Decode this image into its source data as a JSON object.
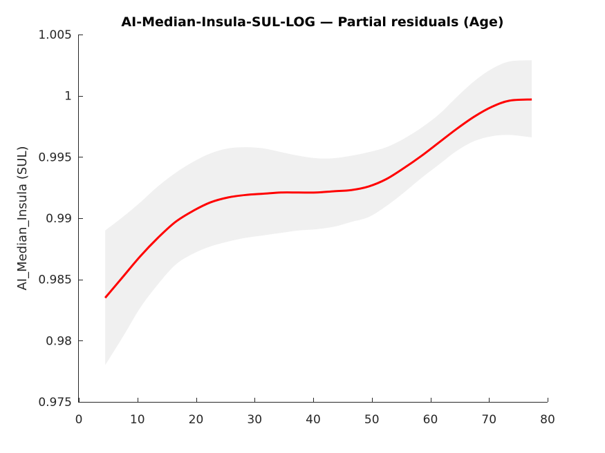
{
  "chart_data": {
    "type": "line",
    "title": "AI-Median-Insula-SUL-LOG — Partial residuals (Age)",
    "xlabel": "",
    "ylabel": "AI_Median_Insula (SUL)",
    "xlim": [
      0,
      80
    ],
    "ylim": [
      0.975,
      1.005
    ],
    "xticks": [
      0,
      10,
      20,
      30,
      40,
      50,
      60,
      70,
      80
    ],
    "xtick_labels": [
      "0",
      "10",
      "20",
      "30",
      "40",
      "50",
      "60",
      "70",
      "80"
    ],
    "yticks": [
      0.975,
      0.98,
      0.985,
      0.99,
      0.995,
      1.0,
      1.005
    ],
    "ytick_labels": [
      "0.975",
      "0.98",
      "0.985",
      "0.99",
      "0.995",
      "1",
      "1.005"
    ],
    "grid": false,
    "series": [
      {
        "type": "line",
        "color": "#ff0000",
        "x": [
          4.5,
          7.5,
          10.5,
          13.5,
          16.5,
          19.5,
          22.5,
          25.5,
          28.5,
          31.5,
          34.5,
          37.5,
          40.5,
          43.5,
          46.5,
          49.5,
          52.5,
          55.5,
          58.5,
          61.5,
          64.5,
          67.5,
          70.5,
          73.5,
          77.3
        ],
        "y": [
          0.9835,
          0.9852,
          0.9869,
          0.9884,
          0.9897,
          0.9906,
          0.9913,
          0.9917,
          0.9919,
          0.992,
          0.9921,
          0.9921,
          0.9921,
          0.9922,
          0.9923,
          0.9926,
          0.9932,
          0.9941,
          0.9951,
          0.9962,
          0.9973,
          0.9983,
          0.9991,
          0.9996,
          0.9997
        ]
      },
      {
        "type": "band",
        "color": "#f0f0f0",
        "x": [
          4.5,
          7.5,
          10.5,
          13.5,
          16.5,
          19.5,
          22.5,
          25.5,
          28.5,
          31.5,
          34.5,
          37.5,
          40.5,
          43.5,
          46.5,
          49.5,
          52.5,
          55.5,
          58.5,
          61.5,
          64.5,
          67.5,
          70.5,
          73.5,
          77.3
        ],
        "lower": [
          0.978,
          0.9803,
          0.9827,
          0.9846,
          0.9862,
          0.9871,
          0.9877,
          0.9881,
          0.9884,
          0.9886,
          0.9888,
          0.989,
          0.9891,
          0.9893,
          0.9897,
          0.9901,
          0.991,
          0.9921,
          0.9933,
          0.9944,
          0.9955,
          0.9963,
          0.9967,
          0.9968,
          0.9966
        ],
        "upper": [
          0.989,
          0.9901,
          0.9913,
          0.9926,
          0.9937,
          0.9946,
          0.9953,
          0.9957,
          0.9958,
          0.9957,
          0.9954,
          0.9951,
          0.9949,
          0.9949,
          0.9951,
          0.9954,
          0.9958,
          0.9965,
          0.9974,
          0.9985,
          0.9999,
          1.0012,
          1.0022,
          1.0028,
          1.0029
        ]
      }
    ]
  }
}
